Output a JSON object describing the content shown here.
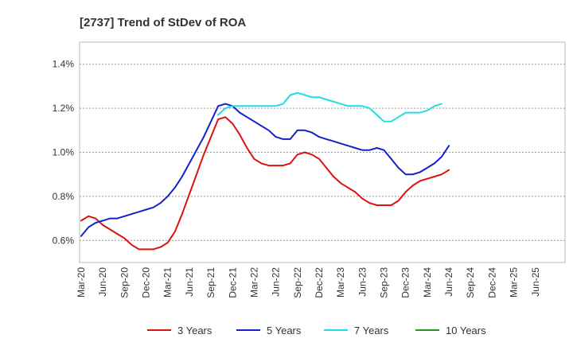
{
  "chart_data": {
    "type": "line",
    "title": "[2737]  Trend of StDev of ROA",
    "xlabel": "",
    "ylabel": "",
    "x_tick_labels": [
      "Mar-20",
      "Jun-20",
      "Sep-20",
      "Dec-20",
      "Mar-21",
      "Jun-21",
      "Sep-21",
      "Dec-21",
      "Mar-22",
      "Jun-22",
      "Sep-22",
      "Dec-22",
      "Mar-23",
      "Jun-23",
      "Sep-23",
      "Dec-23",
      "Mar-24",
      "Jun-24",
      "Sep-24",
      "Dec-24",
      "Mar-25",
      "Jun-25"
    ],
    "y_ticks": [
      0.6,
      0.8,
      1.0,
      1.2,
      1.4
    ],
    "y_tick_labels": [
      "0.6%",
      "0.8%",
      "1.0%",
      "1.2%",
      "1.4%"
    ],
    "ylim": [
      0.5,
      1.5
    ],
    "grid": "horizontal dashed",
    "legend_position": "bottom",
    "series": [
      {
        "name": "3 Years",
        "color": "#dd1111",
        "start_index": 0,
        "values": [
          0.69,
          0.71,
          0.7,
          0.67,
          0.65,
          0.63,
          0.61,
          0.58,
          0.56,
          0.56,
          0.56,
          0.57,
          0.59,
          0.64,
          0.72,
          0.81,
          0.9,
          0.99,
          1.07,
          1.15,
          1.16,
          1.13,
          1.08,
          1.02,
          0.97,
          0.95,
          0.94,
          0.94,
          0.94,
          0.95,
          0.99,
          1.0,
          0.99,
          0.97,
          0.93,
          0.89,
          0.86,
          0.84,
          0.82,
          0.79,
          0.77,
          0.76,
          0.76,
          0.76,
          0.78,
          0.82,
          0.85,
          0.87,
          0.88,
          0.89,
          0.9,
          0.92
        ]
      },
      {
        "name": "5 Years",
        "color": "#1122cc",
        "start_index": 0,
        "values": [
          0.62,
          0.66,
          0.68,
          0.69,
          0.7,
          0.7,
          0.71,
          0.72,
          0.73,
          0.74,
          0.75,
          0.77,
          0.8,
          0.84,
          0.89,
          0.95,
          1.01,
          1.07,
          1.14,
          1.21,
          1.22,
          1.21,
          1.18,
          1.16,
          1.14,
          1.12,
          1.1,
          1.07,
          1.06,
          1.06,
          1.1,
          1.1,
          1.09,
          1.07,
          1.06,
          1.05,
          1.04,
          1.03,
          1.02,
          1.01,
          1.01,
          1.02,
          1.01,
          0.97,
          0.93,
          0.9,
          0.9,
          0.91,
          0.93,
          0.95,
          0.98,
          1.03
        ]
      },
      {
        "name": "7 Years",
        "color": "#22dddd",
        "start_index": 19,
        "values": [
          1.17,
          1.2,
          1.21,
          1.21,
          1.21,
          1.21,
          1.21,
          1.21,
          1.21,
          1.22,
          1.26,
          1.27,
          1.26,
          1.25,
          1.25,
          1.24,
          1.23,
          1.22,
          1.21,
          1.21,
          1.21,
          1.2,
          1.17,
          1.14,
          1.14,
          1.16,
          1.18,
          1.18,
          1.18,
          1.19,
          1.21,
          1.22
        ]
      },
      {
        "name": "10 Years",
        "color": "#229922",
        "start_index": 0,
        "values": []
      }
    ]
  }
}
